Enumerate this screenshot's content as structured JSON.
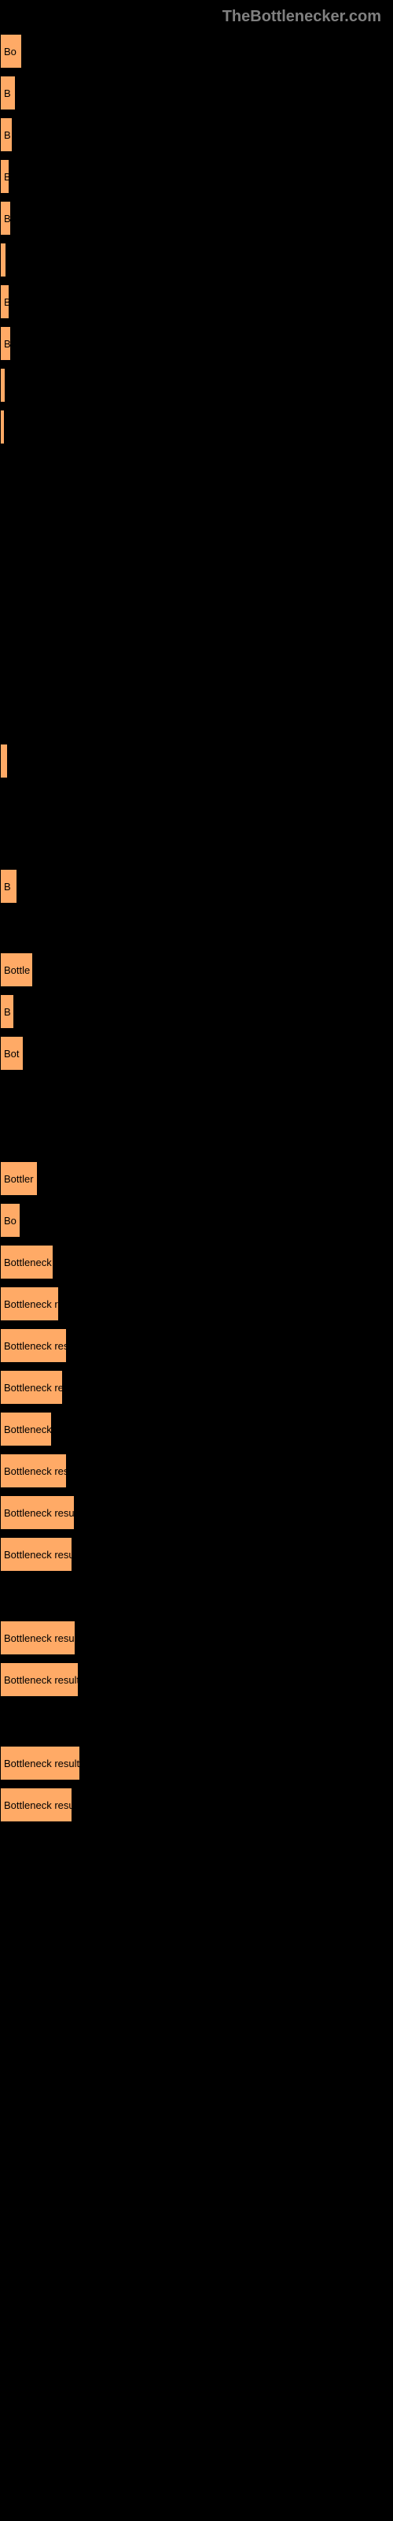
{
  "watermark": "TheBottlenecker.com",
  "chart": {
    "type": "bar",
    "bar_color": "#ffaa66",
    "bar_border_color": "#000000",
    "bar_border_width": 1,
    "background_color": "#000000",
    "label_color": "#000000",
    "label_fontsize": 13,
    "watermark_color": "#808080",
    "watermark_fontsize": 20,
    "max_width": 500,
    "bars": [
      {
        "label": "Bo",
        "width": 28
      },
      {
        "label": "B",
        "width": 20
      },
      {
        "label": "B",
        "width": 16
      },
      {
        "label": "B",
        "width": 12
      },
      {
        "label": "B",
        "width": 14
      },
      {
        "label": "",
        "width": 8
      },
      {
        "label": "B",
        "width": 12
      },
      {
        "label": "B",
        "width": 14
      },
      {
        "label": "",
        "width": 7
      },
      {
        "label": "",
        "width": 6
      },
      {
        "label": "",
        "width": 0
      },
      {
        "label": "",
        "width": 0
      },
      {
        "label": "",
        "width": 0
      },
      {
        "label": "",
        "width": 0
      },
      {
        "label": "",
        "width": 0
      },
      {
        "label": "",
        "width": 0
      },
      {
        "label": "",
        "width": 0
      },
      {
        "label": "",
        "width": 10
      },
      {
        "label": "",
        "width": 0
      },
      {
        "label": "",
        "width": 0
      },
      {
        "label": "B",
        "width": 22
      },
      {
        "label": "",
        "width": 0
      },
      {
        "label": "Bottle",
        "width": 42
      },
      {
        "label": "B",
        "width": 18
      },
      {
        "label": "Bot",
        "width": 30
      },
      {
        "label": "",
        "width": 0
      },
      {
        "label": "",
        "width": 0
      },
      {
        "label": "Bottler",
        "width": 48
      },
      {
        "label": "Bo",
        "width": 26
      },
      {
        "label": "Bottleneck",
        "width": 68
      },
      {
        "label": "Bottleneck r",
        "width": 75
      },
      {
        "label": "Bottleneck res",
        "width": 85
      },
      {
        "label": "Bottleneck re",
        "width": 80
      },
      {
        "label": "Bottleneck",
        "width": 66
      },
      {
        "label": "Bottleneck res",
        "width": 85
      },
      {
        "label": "Bottleneck resul",
        "width": 95
      },
      {
        "label": "Bottleneck resu",
        "width": 92
      },
      {
        "label": "",
        "width": 0
      },
      {
        "label": "Bottleneck resul",
        "width": 96
      },
      {
        "label": "Bottleneck result",
        "width": 100
      },
      {
        "label": "",
        "width": 0
      },
      {
        "label": "Bottleneck result",
        "width": 102
      },
      {
        "label": "Bottleneck resu",
        "width": 92
      }
    ]
  }
}
